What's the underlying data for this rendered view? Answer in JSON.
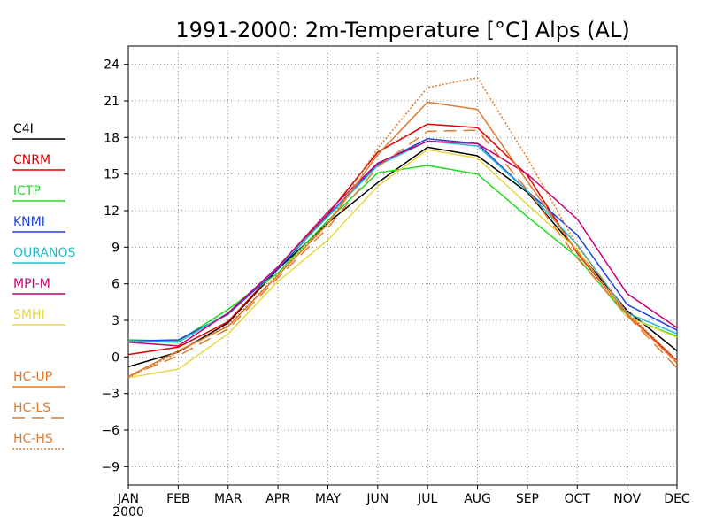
{
  "chart_data": {
    "type": "line",
    "title": "1991-2000: 2m-Temperature [°C] Alps (AL)",
    "xlabel": "",
    "ylabel": "",
    "categories": [
      "JAN",
      "FEB",
      "MAR",
      "APR",
      "MAY",
      "JUN",
      "JUL",
      "AUG",
      "SEP",
      "OCT",
      "NOV",
      "DEC"
    ],
    "x_sublabel": "2000",
    "ylim": [
      -10.5,
      25.5
    ],
    "yticks": [
      -9,
      -6,
      -3,
      0,
      3,
      6,
      9,
      12,
      15,
      18,
      21,
      24
    ],
    "grid": true,
    "legend_position": "left",
    "series": [
      {
        "name": "C4I",
        "color": "#000000",
        "dash": "solid",
        "values": [
          -0.8,
          0.4,
          2.8,
          7.2,
          11.0,
          14.3,
          17.2,
          16.5,
          13.5,
          8.7,
          3.8,
          0.5
        ]
      },
      {
        "name": "CNRM",
        "color": "#dd0000",
        "dash": "solid",
        "values": [
          0.2,
          0.8,
          2.9,
          7.3,
          11.7,
          16.8,
          19.1,
          18.8,
          14.9,
          8.5,
          3.5,
          -0.3
        ]
      },
      {
        "name": "ICTP",
        "color": "#22dd22",
        "dash": "solid",
        "values": [
          1.4,
          1.3,
          3.9,
          6.9,
          11.2,
          15.1,
          15.7,
          15.0,
          11.5,
          8.2,
          3.3,
          1.7
        ]
      },
      {
        "name": "KNMI",
        "color": "#2244dd",
        "dash": "solid",
        "values": [
          1.3,
          1.4,
          3.5,
          7.2,
          11.6,
          15.8,
          17.9,
          17.5,
          13.6,
          10.0,
          4.3,
          2.2
        ]
      },
      {
        "name": "OURANOS",
        "color": "#22bbcc",
        "dash": "solid",
        "values": [
          1.3,
          1.2,
          3.6,
          7.4,
          11.5,
          15.7,
          17.7,
          17.3,
          13.6,
          9.2,
          3.6,
          1.9
        ]
      },
      {
        "name": "MPI-M",
        "color": "#cc0077",
        "dash": "solid",
        "values": [
          1.2,
          0.9,
          3.6,
          7.4,
          11.9,
          15.9,
          17.7,
          17.5,
          15.0,
          11.3,
          5.2,
          2.4
        ]
      },
      {
        "name": "SMHI",
        "color": "#e8d844",
        "dash": "solid",
        "values": [
          -1.7,
          -1.0,
          1.9,
          6.2,
          9.6,
          14.0,
          17.0,
          16.3,
          12.5,
          8.8,
          3.3,
          1.6
        ]
      },
      {
        "name": "HC-UP",
        "color": "#e07a2c",
        "dash": "solid",
        "values": [
          -1.6,
          0.5,
          2.5,
          6.7,
          10.9,
          16.6,
          20.9,
          20.3,
          14.4,
          8.6,
          3.5,
          -0.5
        ]
      },
      {
        "name": "HC-LS",
        "color": "#e07a2c",
        "dash": "longdash",
        "values": [
          -1.6,
          0.1,
          2.3,
          6.5,
          10.6,
          15.6,
          18.5,
          18.6,
          13.7,
          8.1,
          3.4,
          -0.9
        ]
      },
      {
        "name": "HC-HS",
        "color": "#e07a2c",
        "dash": "dotted",
        "values": [
          -1.7,
          0.4,
          2.6,
          6.8,
          11.0,
          17.1,
          22.1,
          22.9,
          16.3,
          9.1,
          3.7,
          -0.3
        ]
      }
    ]
  }
}
